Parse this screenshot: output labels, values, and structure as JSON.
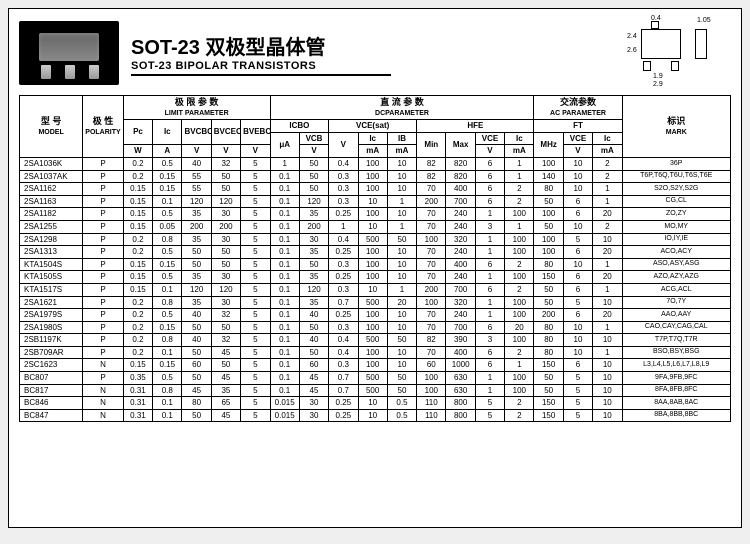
{
  "title": {
    "cn": "SOT-23 双极型晶体管",
    "en": "SOT-23 BIPOLAR TRANSISTORS"
  },
  "dims": {
    "w1": "0.4",
    "w2": "1.05",
    "h1": "2.4",
    "h2": "2.6",
    "b1": "1.9",
    "b2": "2.9"
  },
  "group_headers": {
    "model_cn": "型 号",
    "model_en": "MODEL",
    "polarity_cn": "极 性",
    "polarity_en": "POLARITY",
    "limit_cn": "极 限 参 数",
    "limit_en": "LIMIT PARAMETER",
    "dc_cn": "直  流  参  数",
    "dc_en": "DCPARAMETER",
    "ac_cn": "交流参数",
    "ac_en": "AC PARAMETER",
    "mark_cn": "标识",
    "mark_en": "MARK"
  },
  "sub_headers": {
    "pc": "Pc",
    "ic": "Ic",
    "bvcbo": "BVCBO",
    "bvceo": "BVCEO",
    "bvebo": "BVEBO",
    "icbo": "ICBO",
    "vcb": "VCB",
    "vcesat": "VCE(sat)",
    "v": "V",
    "ic2": "Ic",
    "ib": "IB",
    "hfe": "HFE",
    "min": "Min",
    "max": "Max",
    "vce": "VCE",
    "ic3": "Ic",
    "ft": "FT",
    "mhz": "MHz",
    "vce2": "VCE",
    "ic4": "Ic"
  },
  "units": {
    "w": "W",
    "a": "A",
    "v": "V",
    "ua": "μA",
    "ma": "mA",
    "mhz": "MHz"
  },
  "rows": [
    {
      "m": "2SA1036K",
      "p": "P",
      "pc": "0.2",
      "ic": "0.5",
      "bvcbo": "40",
      "bvceo": "32",
      "bvebo": "5",
      "icbo": "1",
      "vcb": "50",
      "vces": "0.4",
      "ic2": "100",
      "ib": "10",
      "min": "82",
      "max": "820",
      "vce": "6",
      "ic3": "1",
      "ft": "100",
      "vce2": "10",
      "ic4": "2",
      "mark": "36P"
    },
    {
      "m": "2SA1037AK",
      "p": "P",
      "pc": "0.2",
      "ic": "0.15",
      "bvcbo": "55",
      "bvceo": "50",
      "bvebo": "5",
      "icbo": "0.1",
      "vcb": "50",
      "vces": "0.3",
      "ic2": "100",
      "ib": "10",
      "min": "82",
      "max": "820",
      "vce": "6",
      "ic3": "1",
      "ft": "140",
      "vce2": "10",
      "ic4": "2",
      "mark": "T6P,T6Q,T6U,T6S,T6E"
    },
    {
      "m": "2SA1162",
      "p": "P",
      "pc": "0.15",
      "ic": "0.15",
      "bvcbo": "55",
      "bvceo": "50",
      "bvebo": "5",
      "icbo": "0.1",
      "vcb": "50",
      "vces": "0.3",
      "ic2": "100",
      "ib": "10",
      "min": "70",
      "max": "400",
      "vce": "6",
      "ic3": "2",
      "ft": "80",
      "vce2": "10",
      "ic4": "1",
      "mark": "S2O,S2Y,S2G"
    },
    {
      "m": "2SA1163",
      "p": "P",
      "pc": "0.15",
      "ic": "0.1",
      "bvcbo": "120",
      "bvceo": "120",
      "bvebo": "5",
      "icbo": "0.1",
      "vcb": "120",
      "vces": "0.3",
      "ic2": "10",
      "ib": "1",
      "min": "200",
      "max": "700",
      "vce": "6",
      "ic3": "2",
      "ft": "50",
      "vce2": "6",
      "ic4": "1",
      "mark": "CG,CL"
    },
    {
      "m": "2SA1182",
      "p": "P",
      "pc": "0.15",
      "ic": "0.5",
      "bvcbo": "35",
      "bvceo": "30",
      "bvebo": "5",
      "icbo": "0.1",
      "vcb": "35",
      "vces": "0.25",
      "ic2": "100",
      "ib": "10",
      "min": "70",
      "max": "240",
      "vce": "1",
      "ic3": "100",
      "ft": "100",
      "vce2": "6",
      "ic4": "20",
      "mark": "ZO,ZY"
    },
    {
      "m": "2SA1255",
      "p": "P",
      "pc": "0.15",
      "ic": "0.05",
      "bvcbo": "200",
      "bvceo": "200",
      "bvebo": "5",
      "icbo": "0.1",
      "vcb": "200",
      "vces": "1",
      "ic2": "10",
      "ib": "1",
      "min": "70",
      "max": "240",
      "vce": "3",
      "ic3": "1",
      "ft": "50",
      "vce2": "10",
      "ic4": "2",
      "mark": "MO,MY"
    },
    {
      "m": "2SA1298",
      "p": "P",
      "pc": "0.2",
      "ic": "0.8",
      "bvcbo": "35",
      "bvceo": "30",
      "bvebo": "5",
      "icbo": "0.1",
      "vcb": "30",
      "vces": "0.4",
      "ic2": "500",
      "ib": "50",
      "min": "100",
      "max": "320",
      "vce": "1",
      "ic3": "100",
      "ft": "100",
      "vce2": "5",
      "ic4": "10",
      "mark": "IO,IY,IE"
    },
    {
      "m": "2SA1313",
      "p": "P",
      "pc": "0.2",
      "ic": "0.5",
      "bvcbo": "50",
      "bvceo": "50",
      "bvebo": "5",
      "icbo": "0.1",
      "vcb": "35",
      "vces": "0.25",
      "ic2": "100",
      "ib": "10",
      "min": "70",
      "max": "240",
      "vce": "1",
      "ic3": "100",
      "ft": "100",
      "vce2": "6",
      "ic4": "20",
      "mark": "ACO,ACY"
    },
    {
      "m": "KTA1504S",
      "p": "P",
      "pc": "0.15",
      "ic": "0.15",
      "bvcbo": "50",
      "bvceo": "50",
      "bvebo": "5",
      "icbo": "0.1",
      "vcb": "50",
      "vces": "0.3",
      "ic2": "100",
      "ib": "10",
      "min": "70",
      "max": "400",
      "vce": "6",
      "ic3": "2",
      "ft": "80",
      "vce2": "10",
      "ic4": "1",
      "mark": "ASO,ASY,ASG"
    },
    {
      "m": "KTA1505S",
      "p": "P",
      "pc": "0.15",
      "ic": "0.5",
      "bvcbo": "35",
      "bvceo": "30",
      "bvebo": "5",
      "icbo": "0.1",
      "vcb": "35",
      "vces": "0.25",
      "ic2": "100",
      "ib": "10",
      "min": "70",
      "max": "240",
      "vce": "1",
      "ic3": "100",
      "ft": "150",
      "vce2": "6",
      "ic4": "20",
      "mark": "AZO,AZY,AZG"
    },
    {
      "m": "KTA1517S",
      "p": "P",
      "pc": "0.15",
      "ic": "0.1",
      "bvcbo": "120",
      "bvceo": "120",
      "bvebo": "5",
      "icbo": "0.1",
      "vcb": "120",
      "vces": "0.3",
      "ic2": "10",
      "ib": "1",
      "min": "200",
      "max": "700",
      "vce": "6",
      "ic3": "2",
      "ft": "50",
      "vce2": "6",
      "ic4": "1",
      "mark": "ACG,ACL"
    },
    {
      "m": "2SA1621",
      "p": "P",
      "pc": "0.2",
      "ic": "0.8",
      "bvcbo": "35",
      "bvceo": "30",
      "bvebo": "5",
      "icbo": "0.1",
      "vcb": "35",
      "vces": "0.7",
      "ic2": "500",
      "ib": "20",
      "min": "100",
      "max": "320",
      "vce": "1",
      "ic3": "100",
      "ft": "50",
      "vce2": "5",
      "ic4": "10",
      "mark": "7O,7Y"
    },
    {
      "m": "2SA1979S",
      "p": "P",
      "pc": "0.2",
      "ic": "0.5",
      "bvcbo": "40",
      "bvceo": "32",
      "bvebo": "5",
      "icbo": "0.1",
      "vcb": "40",
      "vces": "0.25",
      "ic2": "100",
      "ib": "10",
      "min": "70",
      "max": "240",
      "vce": "1",
      "ic3": "100",
      "ft": "200",
      "vce2": "6",
      "ic4": "20",
      "mark": "AAO,AAY"
    },
    {
      "m": "2SA1980S",
      "p": "P",
      "pc": "0.2",
      "ic": "0.15",
      "bvcbo": "50",
      "bvceo": "50",
      "bvebo": "5",
      "icbo": "0.1",
      "vcb": "50",
      "vces": "0.3",
      "ic2": "100",
      "ib": "10",
      "min": "70",
      "max": "700",
      "vce": "6",
      "ic3": "20",
      "ft": "80",
      "vce2": "10",
      "ic4": "1",
      "mark": "CAO,CAY,CAG,CAL"
    },
    {
      "m": "2SB1197K",
      "p": "P",
      "pc": "0.2",
      "ic": "0.8",
      "bvcbo": "40",
      "bvceo": "32",
      "bvebo": "5",
      "icbo": "0.1",
      "vcb": "40",
      "vces": "0.4",
      "ic2": "500",
      "ib": "50",
      "min": "82",
      "max": "390",
      "vce": "3",
      "ic3": "100",
      "ft": "80",
      "vce2": "10",
      "ic4": "10",
      "mark": "T7P,T7Q,T7R"
    },
    {
      "m": "2SB709AR",
      "p": "P",
      "pc": "0.2",
      "ic": "0.1",
      "bvcbo": "50",
      "bvceo": "45",
      "bvebo": "5",
      "icbo": "0.1",
      "vcb": "50",
      "vces": "0.4",
      "ic2": "100",
      "ib": "10",
      "min": "70",
      "max": "400",
      "vce": "6",
      "ic3": "2",
      "ft": "80",
      "vce2": "10",
      "ic4": "1",
      "mark": "BSO,BSY,BSG"
    },
    {
      "m": "2SC1623",
      "p": "N",
      "pc": "0.15",
      "ic": "0.15",
      "bvcbo": "60",
      "bvceo": "50",
      "bvebo": "5",
      "icbo": "0.1",
      "vcb": "60",
      "vces": "0.3",
      "ic2": "100",
      "ib": "10",
      "min": "60",
      "max": "1000",
      "vce": "6",
      "ic3": "1",
      "ft": "150",
      "vce2": "6",
      "ic4": "10",
      "mark": "L3,L4,L5,L6,L7,L8,L9"
    },
    {
      "m": "BC807",
      "p": "P",
      "pc": "0.35",
      "ic": "0.5",
      "bvcbo": "50",
      "bvceo": "45",
      "bvebo": "5",
      "icbo": "0.1",
      "vcb": "45",
      "vces": "0.7",
      "ic2": "500",
      "ib": "50",
      "min": "100",
      "max": "630",
      "vce": "1",
      "ic3": "100",
      "ft": "50",
      "vce2": "5",
      "ic4": "10",
      "mark": "9FA,9FB,9FC"
    },
    {
      "m": "BC817",
      "p": "N",
      "pc": "0.31",
      "ic": "0.8",
      "bvcbo": "45",
      "bvceo": "35",
      "bvebo": "5",
      "icbo": "0.1",
      "vcb": "45",
      "vces": "0.7",
      "ic2": "500",
      "ib": "50",
      "min": "100",
      "max": "630",
      "vce": "1",
      "ic3": "100",
      "ft": "50",
      "vce2": "5",
      "ic4": "10",
      "mark": "8FA,8FB,8FC"
    },
    {
      "m": "BC846",
      "p": "N",
      "pc": "0.31",
      "ic": "0.1",
      "bvcbo": "80",
      "bvceo": "65",
      "bvebo": "5",
      "icbo": "0.015",
      "vcb": "30",
      "vces": "0.25",
      "ic2": "10",
      "ib": "0.5",
      "min": "110",
      "max": "800",
      "vce": "5",
      "ic3": "2",
      "ft": "150",
      "vce2": "5",
      "ic4": "10",
      "mark": "8AA,8AB,8AC"
    },
    {
      "m": "BC847",
      "p": "N",
      "pc": "0.31",
      "ic": "0.1",
      "bvcbo": "50",
      "bvceo": "45",
      "bvebo": "5",
      "icbo": "0.015",
      "vcb": "30",
      "vces": "0.25",
      "ic2": "10",
      "ib": "0.5",
      "min": "110",
      "max": "800",
      "vce": "5",
      "ic3": "2",
      "ft": "150",
      "vce2": "5",
      "ic4": "10",
      "mark": "8BA,8BB,8BC"
    }
  ]
}
